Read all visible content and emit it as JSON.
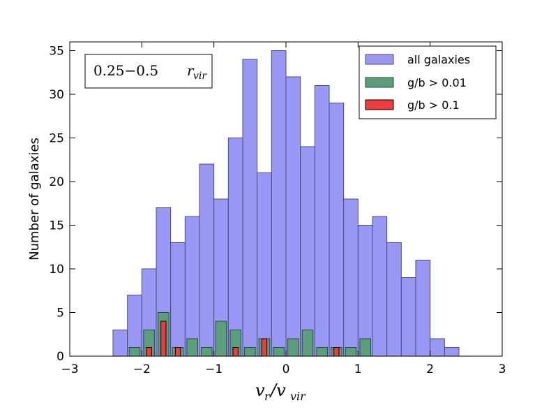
{
  "chart_data": {
    "type": "bar",
    "subtype": "overlaid-histogram",
    "xlabel_main": "v",
    "xlabel_sub1": "r",
    "xlabel_sep": "/v",
    "xlabel_sub2": "vir",
    "ylabel": "Number of galaxies",
    "xlim": [
      -3,
      3
    ],
    "ylim": [
      0,
      36
    ],
    "xticks": [
      -3,
      -2,
      -1,
      0,
      1,
      2,
      3
    ],
    "xtick_labels": [
      "−3",
      "−2",
      "−1",
      "0",
      "1",
      "2",
      "3"
    ],
    "yticks": [
      0,
      5,
      10,
      15,
      20,
      25,
      30,
      35
    ],
    "ytick_labels": [
      "0",
      "5",
      "10",
      "15",
      "20",
      "25",
      "30",
      "35"
    ],
    "annotation": {
      "range_text": "0.25−0.5",
      "symbol": "r",
      "symbol_sub": "vir"
    },
    "legend_position": "upper-right",
    "series": [
      {
        "name": "all galaxies",
        "color": "#9999f5",
        "edge": "#4a4a7a",
        "bin_start": -2.4,
        "bin_width": 0.2,
        "values": [
          3,
          7,
          10,
          17,
          13,
          16,
          22,
          18,
          25,
          34,
          21,
          35,
          32,
          24,
          31,
          29,
          18,
          15,
          16,
          13,
          9,
          11,
          2,
          1
        ]
      },
      {
        "name": "g/b > 0.01",
        "color": "#5a9e7c",
        "edge": "#2a4a3a",
        "bin_start": -2.2,
        "bin_width": 0.2,
        "bar_width": 0.15,
        "values": [
          1,
          3,
          5,
          1,
          2,
          1,
          4,
          3,
          1,
          2,
          1,
          2,
          3,
          1,
          1,
          1,
          2
        ]
      },
      {
        "name": "g/b > 0.1",
        "color": "#f03c3c",
        "edge": "#000000",
        "bin_centers": [
          -1.9,
          -1.7,
          -1.5,
          -0.7,
          -0.3,
          0.7
        ],
        "bar_width": 0.07,
        "values": [
          1,
          4,
          1,
          1,
          2,
          1
        ]
      }
    ]
  }
}
